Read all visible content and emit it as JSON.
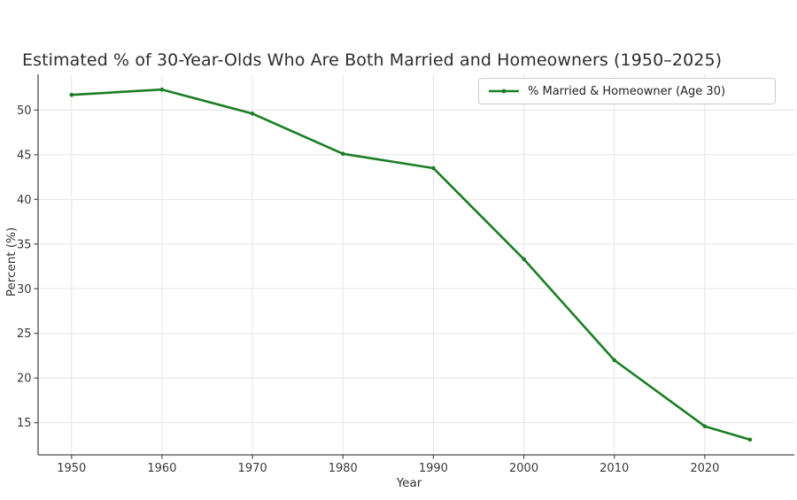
{
  "chart_data": {
    "type": "line",
    "title": "Estimated % of 30-Year-Olds Who Are Both Married and Homeowners (1950–2025)",
    "xlabel": "Year",
    "ylabel": "Percent (%)",
    "x": [
      1950,
      1960,
      1970,
      1980,
      1990,
      2000,
      2010,
      2020,
      2025
    ],
    "series": [
      {
        "name": "% Married & Homeowner (Age 30)",
        "values": [
          51.7,
          52.3,
          49.6,
          45.1,
          43.5,
          33.3,
          22.0,
          14.6,
          13.1
        ],
        "color": "#1b7e24",
        "marker": "circle"
      }
    ],
    "xticks": [
      1950,
      1960,
      1970,
      1980,
      1990,
      2000,
      2010,
      2020
    ],
    "yticks": [
      15,
      20,
      25,
      30,
      35,
      40,
      45,
      50
    ],
    "xlim": [
      1946.3,
      2029.9
    ],
    "ylim": [
      11.4,
      54.0
    ],
    "grid": true,
    "legend_position": "upper right",
    "colors": {
      "line": "#1b7e24",
      "grid": "#e5e5e5",
      "spine": "#4d4d4d",
      "tick_text": "#3a3a3a",
      "title_text": "#2d2d2d",
      "background": "#ffffff",
      "legend_border": "#cccccc"
    }
  }
}
